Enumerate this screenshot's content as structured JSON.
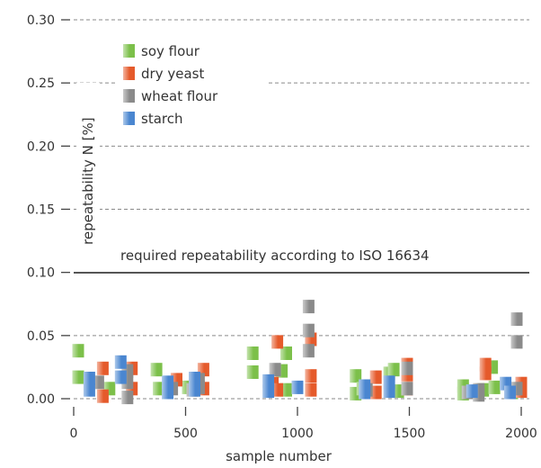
{
  "chart_data": {
    "type": "scatter",
    "xlabel": "sample number",
    "ylabel": "repeatability N [%]",
    "xlim": [
      -20,
      2010
    ],
    "ylim": [
      0.0,
      0.3
    ],
    "x_ticks": [
      0,
      500,
      1000,
      1500,
      2000
    ],
    "x_tick_labels": [
      "0",
      "500",
      "1000",
      "1500",
      "2000"
    ],
    "y_ticks": [
      0.0,
      0.05,
      0.1,
      0.15,
      0.2,
      0.25,
      0.3
    ],
    "y_tick_labels": [
      "0.00",
      "0.05",
      "0.10",
      "0.15",
      "0.20",
      "0.25",
      "0.30"
    ],
    "grid": "horizontal dashed",
    "legend_position": "top-left",
    "reference_line": {
      "y": 0.1,
      "label": "required repeatability according to ISO 16634"
    },
    "series": [
      {
        "name": "soy flour",
        "color": "#7cc04a",
        "points": [
          [
            20,
            0.038
          ],
          [
            20,
            0.017
          ],
          [
            160,
            0.008
          ],
          [
            370,
            0.023
          ],
          [
            380,
            0.008
          ],
          [
            510,
            0.009
          ],
          [
            800,
            0.036
          ],
          [
            800,
            0.021
          ],
          [
            930,
            0.022
          ],
          [
            950,
            0.036
          ],
          [
            950,
            0.007
          ],
          [
            1260,
            0.018
          ],
          [
            1260,
            0.004
          ],
          [
            1290,
            0.008
          ],
          [
            1410,
            0.02
          ],
          [
            1430,
            0.023
          ],
          [
            1450,
            0.006
          ],
          [
            1740,
            0.01
          ],
          [
            1740,
            0.004
          ],
          [
            1830,
            0.007
          ],
          [
            1870,
            0.025
          ],
          [
            1880,
            0.009
          ],
          [
            1960,
            0.005
          ]
        ]
      },
      {
        "name": "dry yeast",
        "color": "#e55a2b",
        "points": [
          [
            130,
            0.024
          ],
          [
            130,
            0.002
          ],
          [
            260,
            0.024
          ],
          [
            260,
            0.008
          ],
          [
            460,
            0.015
          ],
          [
            580,
            0.023
          ],
          [
            580,
            0.008
          ],
          [
            890,
            0.012
          ],
          [
            910,
            0.045
          ],
          [
            910,
            0.007
          ],
          [
            1060,
            0.047
          ],
          [
            1060,
            0.018
          ],
          [
            1060,
            0.007
          ],
          [
            1350,
            0.017
          ],
          [
            1350,
            0.005
          ],
          [
            1490,
            0.027
          ],
          [
            1490,
            0.019
          ],
          [
            1490,
            0.008
          ],
          [
            1840,
            0.027
          ],
          [
            1840,
            0.02
          ],
          [
            2000,
            0.012
          ],
          [
            2000,
            0.006
          ]
        ]
      },
      {
        "name": "wheat flour",
        "color": "#8a8a8a",
        "points": [
          [
            110,
            0.013
          ],
          [
            240,
            0.022
          ],
          [
            240,
            0.013
          ],
          [
            240,
            0.001
          ],
          [
            440,
            0.008
          ],
          [
            530,
            0.007
          ],
          [
            560,
            0.015
          ],
          [
            560,
            0.009
          ],
          [
            900,
            0.023
          ],
          [
            1050,
            0.073
          ],
          [
            1050,
            0.054
          ],
          [
            1050,
            0.038
          ],
          [
            1310,
            0.007
          ],
          [
            1490,
            0.024
          ],
          [
            1490,
            0.008
          ],
          [
            1760,
            0.005
          ],
          [
            1810,
            0.007
          ],
          [
            1810,
            0.003
          ],
          [
            1980,
            0.063
          ],
          [
            1980,
            0.045
          ],
          [
            1980,
            0.008
          ]
        ]
      },
      {
        "name": "starch",
        "color": "#4a86d0",
        "points": [
          [
            70,
            0.016
          ],
          [
            70,
            0.007
          ],
          [
            210,
            0.029
          ],
          [
            210,
            0.017
          ],
          [
            420,
            0.013
          ],
          [
            420,
            0.005
          ],
          [
            540,
            0.016
          ],
          [
            540,
            0.007
          ],
          [
            870,
            0.014
          ],
          [
            870,
            0.006
          ],
          [
            1000,
            0.009
          ],
          [
            1300,
            0.01
          ],
          [
            1300,
            0.005
          ],
          [
            1410,
            0.013
          ],
          [
            1410,
            0.006
          ],
          [
            1780,
            0.006
          ],
          [
            1930,
            0.012
          ],
          [
            1950,
            0.005
          ]
        ]
      }
    ]
  }
}
